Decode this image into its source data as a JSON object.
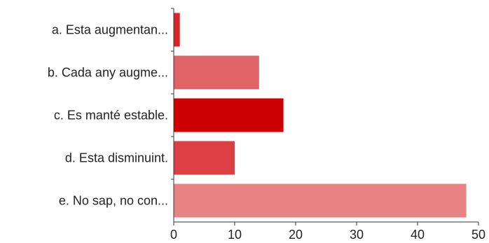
{
  "chart_data": {
    "type": "bar",
    "orientation": "horizontal",
    "categories": [
      "a. Esta augmentan...",
      "b. Cada any augme...",
      "c. Es manté estable.",
      "d. Esta disminuint.",
      "e. No sap, no con..."
    ],
    "values": [
      1,
      14,
      18,
      10,
      48
    ],
    "bar_colors": [
      "#d9232b",
      "#e06467",
      "#cc0000",
      "#db4144",
      "#e88383"
    ],
    "xlim": [
      0,
      50
    ],
    "x_ticks": [
      0,
      10,
      20,
      30,
      40,
      50
    ],
    "grid": false,
    "legend": "none",
    "title": "",
    "xlabel": "",
    "ylabel": ""
  }
}
